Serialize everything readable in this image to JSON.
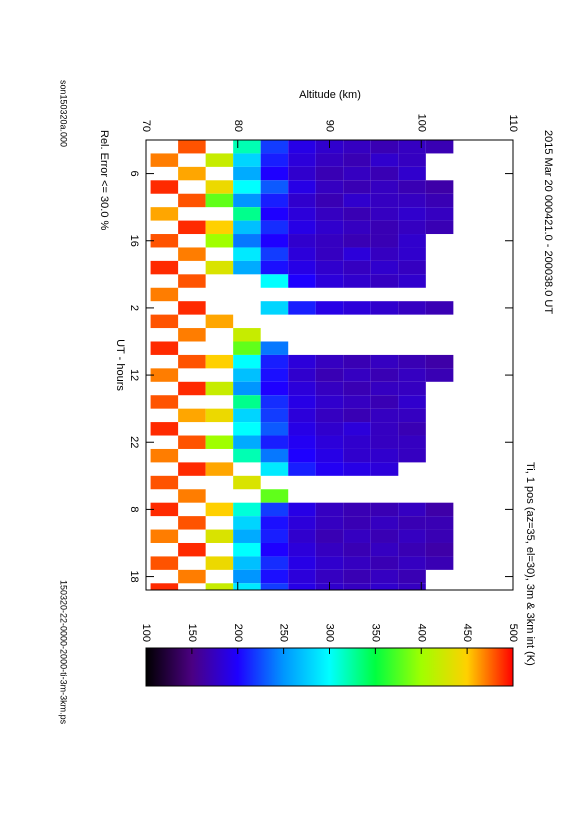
{
  "chart_data": {
    "type": "heatmap",
    "title": "2015 Mar 20     000421.0 - 200038.0 UT",
    "colorbar_label": "Ti, 1 pos (az=35, el=30), 3m & 3km int (K)",
    "xlabel": "UT - hours",
    "ylabel": "Altitude (km)",
    "annotation": "Rel. Error <= 30.0 %",
    "footer_left": "son150320a.000",
    "footer_right": "150320-22-0000-2000-ti-3m-3km.ps",
    "xlim": [
      1,
      68
    ],
    "xticks": [
      6,
      16,
      {
        "value": 26,
        "label": "2"
      },
      {
        "value": 36,
        "label": "12"
      },
      {
        "value": 46,
        "label": "22"
      },
      {
        "value": 56,
        "label": "8"
      },
      {
        "value": 66,
        "label": "18"
      }
    ],
    "ylim": [
      70,
      110
    ],
    "yticks": [
      70,
      80,
      90,
      100,
      110
    ],
    "clim": [
      100,
      500
    ],
    "cticks": [
      100,
      150,
      200,
      250,
      300,
      350,
      400,
      450,
      500
    ],
    "colormap": [
      "#000000",
      "#4b0082",
      "#1e00ff",
      "#0096ff",
      "#00ffff",
      "#00ff40",
      "#a0ff00",
      "#ffd000",
      "#ff0000"
    ],
    "x": [
      2,
      4,
      6,
      8,
      10,
      12,
      14,
      16,
      18,
      20,
      22,
      24,
      26,
      28,
      30,
      32,
      34,
      36,
      38,
      40,
      42,
      44,
      46,
      48,
      50,
      52,
      54,
      56,
      58,
      60,
      62,
      64,
      66,
      68
    ],
    "y": [
      72,
      75,
      78,
      81,
      84,
      87,
      90,
      93,
      96,
      99,
      102
    ],
    "z": [
      [
        null,
        480,
        null,
        320,
        220,
        190,
        180,
        175,
        170,
        175,
        170
      ],
      [
        470,
        null,
        420,
        280,
        210,
        185,
        175,
        170,
        180,
        175,
        null
      ],
      [
        null,
        460,
        null,
        260,
        200,
        180,
        170,
        175,
        170,
        180,
        null
      ],
      [
        490,
        null,
        440,
        300,
        230,
        190,
        175,
        170,
        175,
        170,
        165
      ],
      [
        null,
        480,
        380,
        250,
        210,
        180,
        170,
        180,
        175,
        175,
        170
      ],
      [
        460,
        null,
        null,
        330,
        200,
        185,
        175,
        170,
        175,
        180,
        175
      ],
      [
        null,
        490,
        450,
        270,
        215,
        190,
        180,
        175,
        170,
        175,
        170
      ],
      [
        480,
        null,
        400,
        240,
        200,
        180,
        175,
        170,
        170,
        180,
        null
      ],
      [
        null,
        470,
        null,
        290,
        220,
        185,
        175,
        185,
        175,
        180,
        null
      ],
      [
        490,
        null,
        430,
        260,
        205,
        190,
        180,
        175,
        180,
        175,
        null
      ],
      [
        null,
        480,
        null,
        null,
        300,
        200,
        185,
        180,
        175,
        180,
        null
      ],
      [
        470,
        null,
        null,
        null,
        null,
        null,
        null,
        null,
        null,
        null,
        null
      ],
      [
        null,
        490,
        null,
        null,
        280,
        210,
        190,
        185,
        180,
        175,
        170
      ],
      [
        480,
        null,
        460,
        null,
        null,
        null,
        null,
        null,
        null,
        null,
        null
      ],
      [
        null,
        470,
        null,
        420,
        null,
        null,
        null,
        null,
        null,
        null,
        null
      ],
      [
        490,
        null,
        null,
        380,
        240,
        null,
        null,
        null,
        null,
        null,
        null
      ],
      [
        null,
        480,
        450,
        300,
        210,
        185,
        175,
        170,
        175,
        170,
        165
      ],
      [
        470,
        null,
        null,
        270,
        205,
        180,
        170,
        175,
        170,
        175,
        170
      ],
      [
        null,
        490,
        420,
        250,
        200,
        185,
        175,
        170,
        175,
        175,
        null
      ],
      [
        480,
        null,
        null,
        330,
        215,
        190,
        180,
        175,
        170,
        180,
        null
      ],
      [
        null,
        460,
        440,
        280,
        220,
        185,
        175,
        170,
        175,
        175,
        null
      ],
      [
        490,
        null,
        null,
        300,
        230,
        190,
        180,
        185,
        175,
        170,
        null
      ],
      [
        null,
        480,
        400,
        260,
        210,
        195,
        185,
        180,
        175,
        175,
        null
      ],
      [
        470,
        null,
        null,
        320,
        240,
        200,
        190,
        180,
        180,
        175,
        null
      ],
      [
        null,
        490,
        460,
        null,
        290,
        210,
        195,
        190,
        185,
        null,
        null
      ],
      [
        480,
        null,
        null,
        430,
        null,
        null,
        null,
        null,
        null,
        null,
        null
      ],
      [
        null,
        470,
        null,
        null,
        380,
        null,
        null,
        null,
        null,
        null,
        null
      ],
      [
        490,
        null,
        450,
        310,
        220,
        190,
        175,
        170,
        170,
        175,
        165
      ],
      [
        null,
        480,
        null,
        280,
        205,
        185,
        175,
        170,
        175,
        170,
        170
      ],
      [
        470,
        null,
        430,
        260,
        210,
        180,
        170,
        175,
        170,
        175,
        170
      ],
      [
        null,
        490,
        null,
        300,
        200,
        185,
        175,
        170,
        175,
        170,
        165
      ],
      [
        480,
        null,
        440,
        270,
        215,
        190,
        180,
        175,
        170,
        175,
        170
      ],
      [
        null,
        470,
        null,
        250,
        205,
        185,
        175,
        170,
        175,
        170,
        null
      ],
      [
        490,
        null,
        420,
        290,
        220,
        190,
        180,
        175,
        180,
        175,
        null
      ]
    ]
  }
}
